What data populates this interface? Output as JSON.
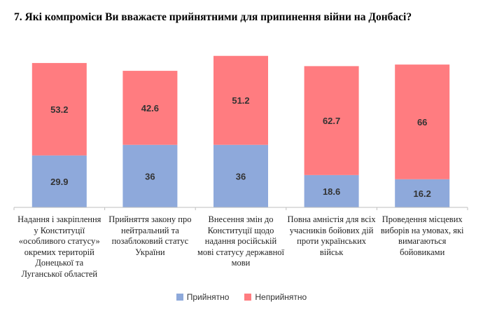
{
  "title": "7.  Які компроміси Ви вважаєте прийнятними для припинення війни на Донбасі?",
  "colors": {
    "accepted": "#8EA9DB",
    "unaccepted": "#FF7C80",
    "axis": "#bfbfbf"
  },
  "legend": {
    "accepted": "Прийнятно",
    "unaccepted": "Неприйнятно"
  },
  "chart_data": {
    "type": "bar",
    "stacked": true,
    "categories": [
      "Надання і закріплення у Конституції «особливого статусу» окремих територій Донецької та Луганської областей",
      "Прийняття закону про нейтральний та позаблоковий статус України",
      "Внесення змін до Конституції щодо надання російській мові статусу державної мови",
      "Повна амністія для всіх учасників бойових дій проти українських військ",
      "Проведення місцевих виборів на умовах, які вимагаються бойовиками"
    ],
    "series": [
      {
        "name": "Прийнятно",
        "values": [
          29.9,
          36,
          36,
          18.6,
          16.2
        ]
      },
      {
        "name": "Неприйнятно",
        "values": [
          53.2,
          42.6,
          51.2,
          62.7,
          66
        ]
      }
    ],
    "value_labels": [
      [
        "29.9",
        "36",
        "36",
        "18.6",
        "16.2"
      ],
      [
        "53.2",
        "42.6",
        "51.2",
        "62.7",
        "66"
      ]
    ],
    "grid": false,
    "legend_position": "bottom"
  }
}
